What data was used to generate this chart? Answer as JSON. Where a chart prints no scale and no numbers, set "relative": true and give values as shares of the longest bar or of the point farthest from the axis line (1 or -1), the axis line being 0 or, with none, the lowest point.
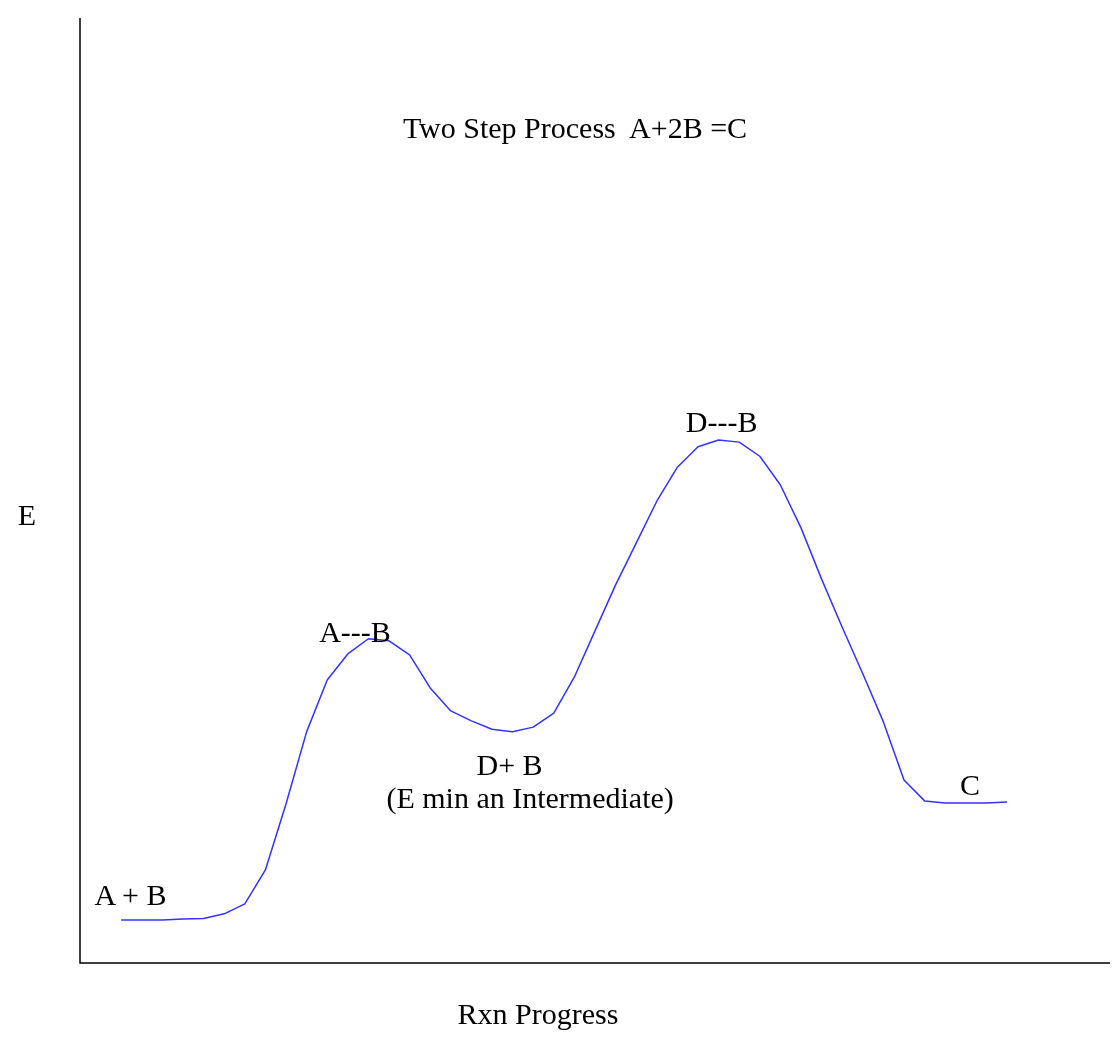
{
  "chart_data": {
    "type": "line",
    "title": "Two Step Process  A+2B =C",
    "xlabel": "Rxn Progress",
    "ylabel": "E",
    "relative": true,
    "marker": "none",
    "color": "#3333ff",
    "categories": [
      null,
      null,
      null,
      null,
      null,
      null,
      null,
      null,
      null,
      null,
      null,
      null,
      null,
      null,
      null,
      null,
      null,
      null,
      null,
      null,
      null,
      null,
      null,
      null,
      null,
      null,
      null,
      null,
      null,
      null,
      null,
      null,
      null,
      null,
      null,
      null,
      null,
      null,
      null,
      null,
      null,
      null,
      null,
      null,
      null,
      null,
      null,
      null,
      null,
      null,
      null
    ],
    "values": [
      null,
      null,
      0.082,
      0.082,
      0.082,
      0.084,
      0.085,
      0.094,
      0.113,
      0.178,
      0.304,
      0.442,
      0.541,
      0.591,
      0.62,
      0.616,
      0.589,
      0.526,
      0.482,
      0.463,
      0.447,
      0.442,
      0.451,
      0.478,
      0.547,
      0.635,
      0.723,
      0.803,
      0.883,
      0.948,
      0.987,
      1,
      0.996,
      0.969,
      0.914,
      0.832,
      0.734,
      0.642,
      0.553,
      0.461,
      0.35,
      0.31,
      0.306,
      0.306,
      0.306,
      0.308,
      null,
      null,
      null,
      null,
      null
    ],
    "annotations": [
      "A + B",
      "A---B",
      "D+ B",
      "(E min an Intermediate)",
      "D---B",
      "C"
    ]
  }
}
